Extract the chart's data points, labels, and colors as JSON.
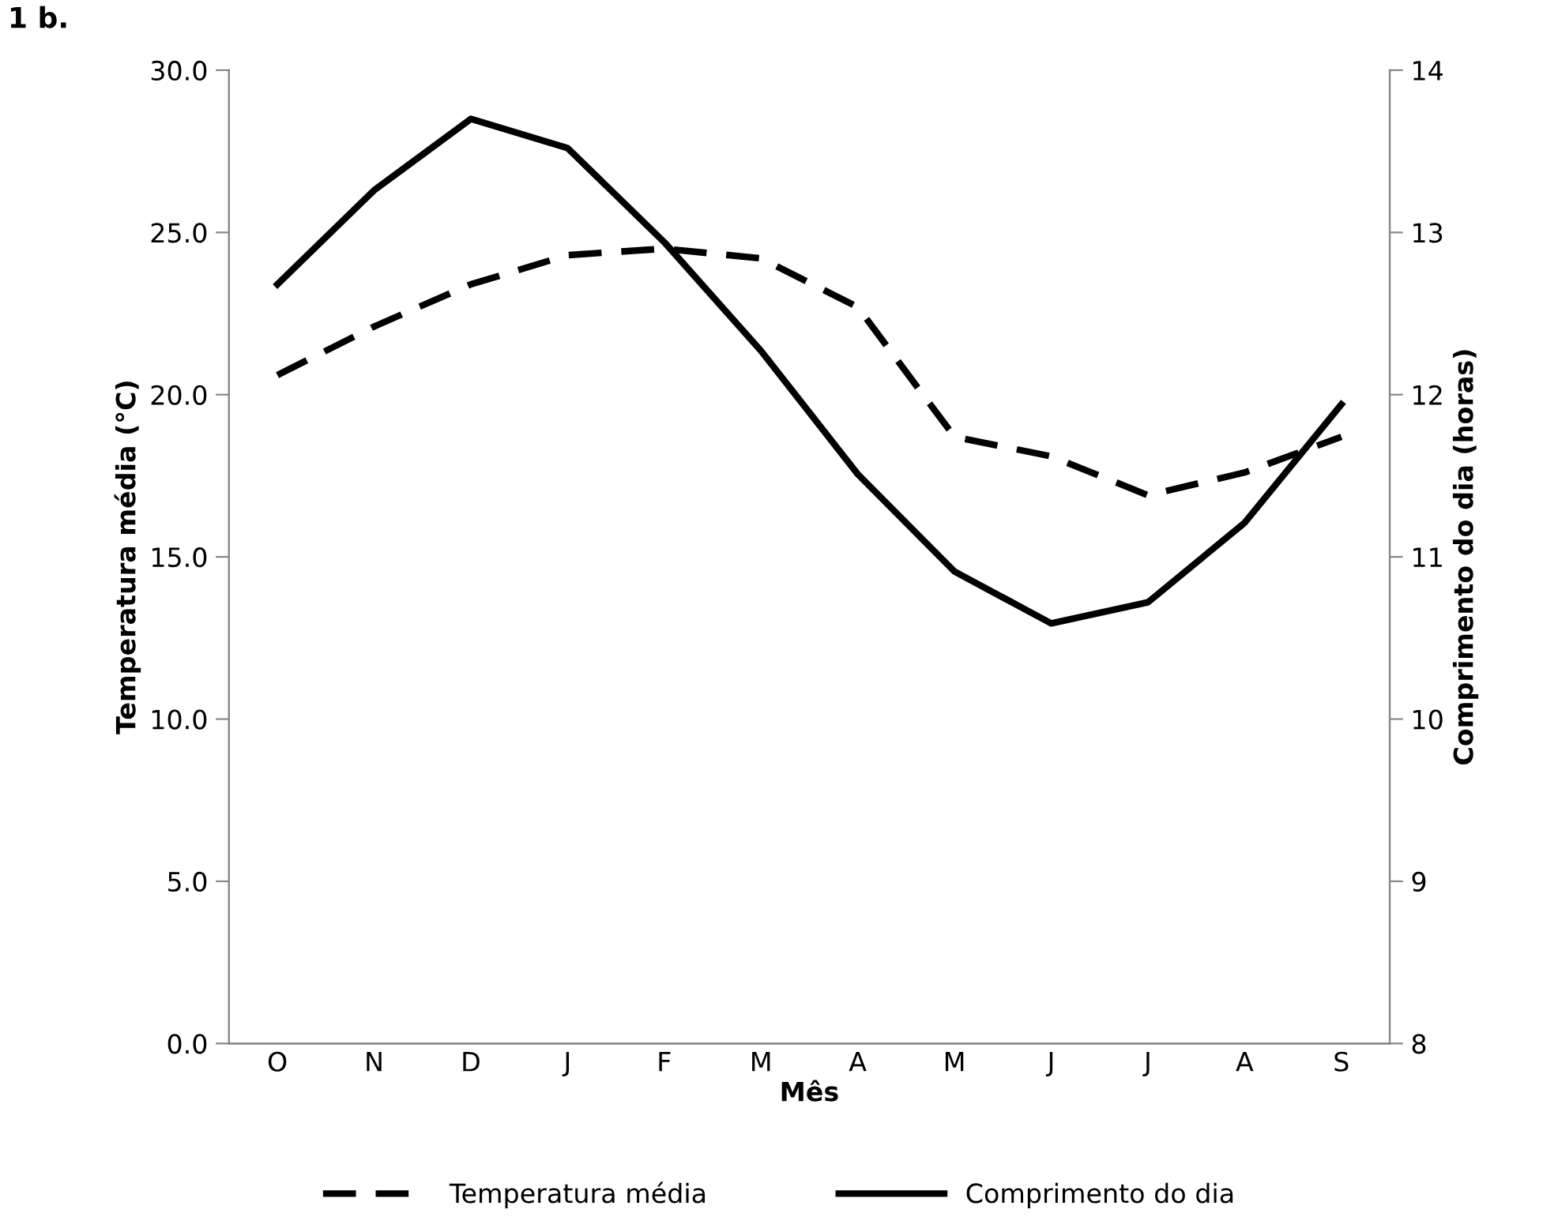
{
  "chart_data": {
    "type": "line",
    "title": "1 b.",
    "xlabel": "Mês",
    "ylabel": "Temperatura média (°C)",
    "y2label": "Comprimento do dia (horas)",
    "categories": [
      "O",
      "N",
      "D",
      "J",
      "F",
      "M",
      "A",
      "M",
      "J",
      "J",
      "A",
      "S"
    ],
    "series": [
      {
        "name": "Temperatura média",
        "color": "#000000",
        "line_style": "dashed",
        "values": [
          20.6,
          22.1,
          23.4,
          24.3,
          24.5,
          24.2,
          22.7,
          18.7,
          18.1,
          16.9,
          17.6,
          18.7
        ]
      },
      {
        "name": "Comprimento do dia",
        "color": "#000000",
        "line_style": "solid",
        "axis": "y2",
        "values": [
          12.68,
          13.26,
          13.7,
          13.52,
          12.94,
          12.27,
          11.51,
          10.91,
          10.59,
          10.72,
          11.21,
          11.94
        ]
      }
    ],
    "ylim": [
      0,
      30
    ],
    "yticks": [
      {
        "value": 0,
        "label": "0.0"
      },
      {
        "value": 5,
        "label": "5.0"
      },
      {
        "value": 10,
        "label": "10.0"
      },
      {
        "value": 15,
        "label": "15.0"
      },
      {
        "value": 20,
        "label": "20.0"
      },
      {
        "value": 25,
        "label": "25.0"
      },
      {
        "value": 30,
        "label": "30.0"
      }
    ],
    "y2lim": [
      8,
      14
    ],
    "y2ticks": [
      8,
      9,
      10,
      11,
      12,
      13,
      14
    ],
    "grid": false,
    "legend": "bottom",
    "marker": "none"
  }
}
